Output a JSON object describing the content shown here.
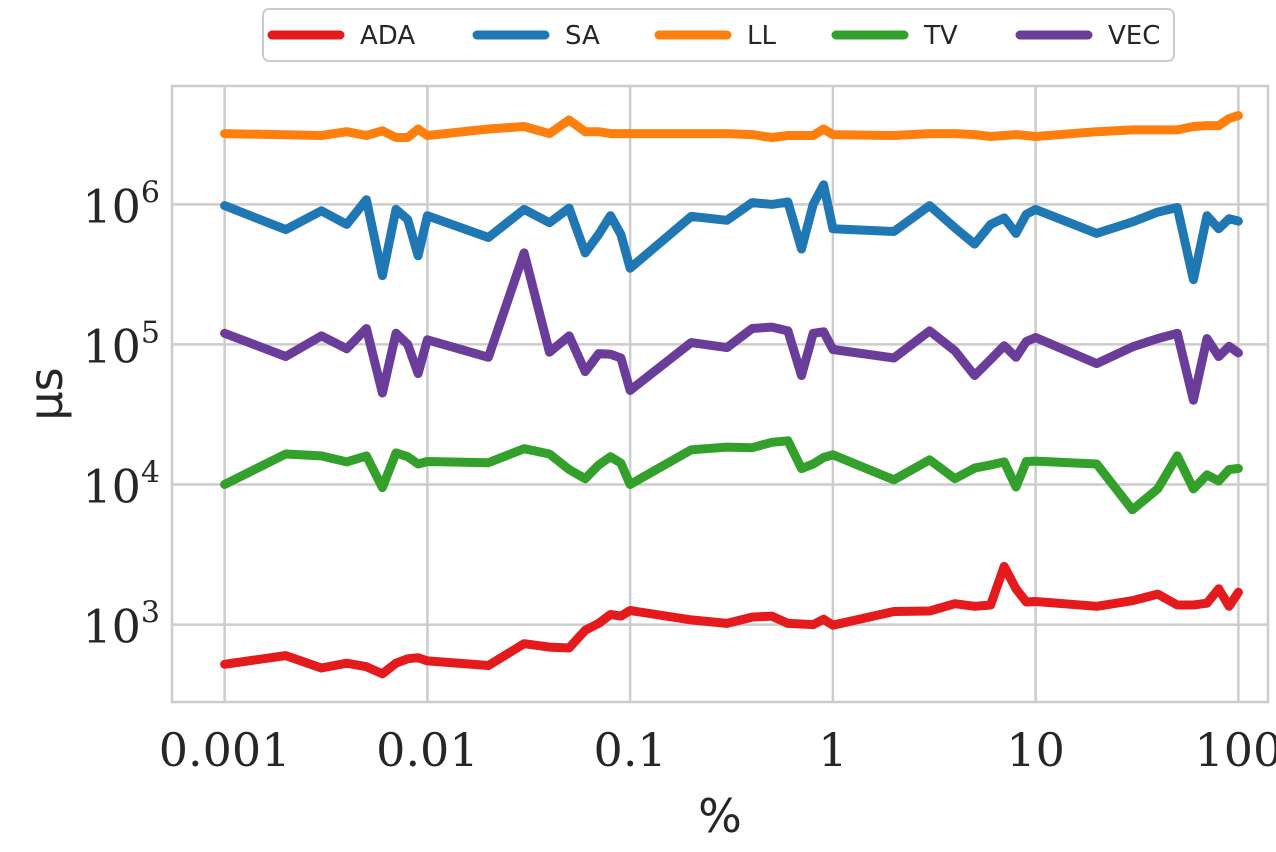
{
  "chart_data": {
    "type": "line",
    "xlabel": "%",
    "ylabel": "μs",
    "xscale": "log",
    "yscale": "log",
    "xlim": [
      0.00055,
      140
    ],
    "ylim": [
      280,
      7000000
    ],
    "xticks": [
      {
        "value": 0.001,
        "label": "0.001"
      },
      {
        "value": 0.01,
        "label": "0.01"
      },
      {
        "value": 0.1,
        "label": "0.1"
      },
      {
        "value": 1,
        "label": "1"
      },
      {
        "value": 10,
        "label": "10"
      },
      {
        "value": 100,
        "label": "100"
      }
    ],
    "yticks": [
      {
        "value": 1000,
        "base": "10",
        "exp": "3"
      },
      {
        "value": 10000,
        "base": "10",
        "exp": "4"
      },
      {
        "value": 100000,
        "base": "10",
        "exp": "5"
      },
      {
        "value": 1000000,
        "base": "10",
        "exp": "6"
      }
    ],
    "grid": true,
    "legend_position": "top-center",
    "series": [
      {
        "name": "ADA",
        "color": "#e41a1c",
        "points": [
          [
            0.001,
            520
          ],
          [
            0.002,
            600
          ],
          [
            0.003,
            490
          ],
          [
            0.004,
            530
          ],
          [
            0.005,
            500
          ],
          [
            0.006,
            445
          ],
          [
            0.007,
            530
          ],
          [
            0.008,
            570
          ],
          [
            0.009,
            580
          ],
          [
            0.01,
            550
          ],
          [
            0.02,
            510
          ],
          [
            0.03,
            730
          ],
          [
            0.04,
            690
          ],
          [
            0.05,
            680
          ],
          [
            0.06,
            910
          ],
          [
            0.07,
            1020
          ],
          [
            0.08,
            1180
          ],
          [
            0.09,
            1150
          ],
          [
            0.1,
            1260
          ],
          [
            0.2,
            1080
          ],
          [
            0.3,
            1020
          ],
          [
            0.4,
            1130
          ],
          [
            0.5,
            1150
          ],
          [
            0.6,
            1020
          ],
          [
            0.7,
            1010
          ],
          [
            0.8,
            1000
          ],
          [
            0.9,
            1090
          ],
          [
            1,
            990
          ],
          [
            2,
            1240
          ],
          [
            3,
            1250
          ],
          [
            4,
            1410
          ],
          [
            5,
            1350
          ],
          [
            6,
            1380
          ],
          [
            7,
            2600
          ],
          [
            8,
            1800
          ],
          [
            9,
            1450
          ],
          [
            10,
            1460
          ],
          [
            20,
            1350
          ],
          [
            30,
            1480
          ],
          [
            40,
            1650
          ],
          [
            50,
            1380
          ],
          [
            60,
            1380
          ],
          [
            70,
            1420
          ],
          [
            80,
            1800
          ],
          [
            90,
            1350
          ],
          [
            100,
            1700
          ]
        ]
      },
      {
        "name": "SA",
        "color": "#1f78b4",
        "points": [
          [
            0.001,
            980000
          ],
          [
            0.002,
            660000
          ],
          [
            0.003,
            900000
          ],
          [
            0.004,
            720000
          ],
          [
            0.005,
            1080000
          ],
          [
            0.006,
            310000
          ],
          [
            0.007,
            920000
          ],
          [
            0.008,
            780000
          ],
          [
            0.009,
            430000
          ],
          [
            0.01,
            830000
          ],
          [
            0.02,
            580000
          ],
          [
            0.03,
            920000
          ],
          [
            0.04,
            740000
          ],
          [
            0.05,
            940000
          ],
          [
            0.06,
            450000
          ],
          [
            0.07,
            610000
          ],
          [
            0.08,
            830000
          ],
          [
            0.09,
            610000
          ],
          [
            0.1,
            350000
          ],
          [
            0.2,
            820000
          ],
          [
            0.3,
            770000
          ],
          [
            0.4,
            1030000
          ],
          [
            0.5,
            1000000
          ],
          [
            0.6,
            1040000
          ],
          [
            0.7,
            480000
          ],
          [
            0.8,
            1000000
          ],
          [
            0.9,
            1380000
          ],
          [
            1,
            670000
          ],
          [
            2,
            640000
          ],
          [
            3,
            980000
          ],
          [
            4,
            680000
          ],
          [
            5,
            520000
          ],
          [
            6,
            720000
          ],
          [
            7,
            800000
          ],
          [
            8,
            620000
          ],
          [
            9,
            850000
          ],
          [
            10,
            920000
          ],
          [
            20,
            620000
          ],
          [
            30,
            750000
          ],
          [
            40,
            880000
          ],
          [
            50,
            950000
          ],
          [
            60,
            290000
          ],
          [
            70,
            830000
          ],
          [
            80,
            670000
          ],
          [
            90,
            790000
          ],
          [
            100,
            760000
          ]
        ]
      },
      {
        "name": "LL",
        "color": "#ff7f0e",
        "points": [
          [
            0.001,
            3200000
          ],
          [
            0.003,
            3100000
          ],
          [
            0.004,
            3300000
          ],
          [
            0.005,
            3100000
          ],
          [
            0.006,
            3350000
          ],
          [
            0.007,
            3000000
          ],
          [
            0.008,
            3000000
          ],
          [
            0.009,
            3450000
          ],
          [
            0.01,
            3100000
          ],
          [
            0.02,
            3450000
          ],
          [
            0.03,
            3600000
          ],
          [
            0.04,
            3200000
          ],
          [
            0.05,
            4000000
          ],
          [
            0.06,
            3300000
          ],
          [
            0.07,
            3300000
          ],
          [
            0.08,
            3200000
          ],
          [
            0.1,
            3200000
          ],
          [
            0.3,
            3200000
          ],
          [
            0.4,
            3150000
          ],
          [
            0.5,
            3000000
          ],
          [
            0.6,
            3100000
          ],
          [
            0.7,
            3100000
          ],
          [
            0.8,
            3100000
          ],
          [
            0.9,
            3450000
          ],
          [
            1,
            3150000
          ],
          [
            2,
            3100000
          ],
          [
            3,
            3200000
          ],
          [
            4,
            3200000
          ],
          [
            5,
            3150000
          ],
          [
            6,
            3050000
          ],
          [
            7,
            3100000
          ],
          [
            8,
            3150000
          ],
          [
            9,
            3100000
          ],
          [
            10,
            3050000
          ],
          [
            20,
            3300000
          ],
          [
            30,
            3400000
          ],
          [
            50,
            3400000
          ],
          [
            60,
            3600000
          ],
          [
            70,
            3650000
          ],
          [
            80,
            3650000
          ],
          [
            90,
            4100000
          ],
          [
            100,
            4300000
          ]
        ]
      },
      {
        "name": "TV",
        "color": "#33a02c",
        "points": [
          [
            0.001,
            10000
          ],
          [
            0.002,
            16500
          ],
          [
            0.003,
            16000
          ],
          [
            0.004,
            14500
          ],
          [
            0.005,
            16000
          ],
          [
            0.006,
            9500
          ],
          [
            0.007,
            16800
          ],
          [
            0.008,
            15800
          ],
          [
            0.009,
            14000
          ],
          [
            0.01,
            14600
          ],
          [
            0.02,
            14300
          ],
          [
            0.03,
            18000
          ],
          [
            0.04,
            16500
          ],
          [
            0.05,
            12800
          ],
          [
            0.06,
            11000
          ],
          [
            0.07,
            13800
          ],
          [
            0.08,
            15800
          ],
          [
            0.09,
            14200
          ],
          [
            0.1,
            10000
          ],
          [
            0.2,
            17700
          ],
          [
            0.3,
            18500
          ],
          [
            0.4,
            18300
          ],
          [
            0.5,
            20000
          ],
          [
            0.6,
            20500
          ],
          [
            0.7,
            13000
          ],
          [
            0.8,
            14000
          ],
          [
            0.9,
            15600
          ],
          [
            1,
            16300
          ],
          [
            2,
            10800
          ],
          [
            3,
            15000
          ],
          [
            4,
            11000
          ],
          [
            5,
            13100
          ],
          [
            6,
            13800
          ],
          [
            7,
            14500
          ],
          [
            8,
            9600
          ],
          [
            9,
            14600
          ],
          [
            10,
            14700
          ],
          [
            20,
            14000
          ],
          [
            30,
            6600
          ],
          [
            40,
            9300
          ],
          [
            50,
            16000
          ],
          [
            60,
            9300
          ],
          [
            70,
            11700
          ],
          [
            80,
            10600
          ],
          [
            90,
            12800
          ],
          [
            100,
            13000
          ]
        ]
      },
      {
        "name": "VEC",
        "color": "#6a3d9a",
        "points": [
          [
            0.001,
            120000
          ],
          [
            0.002,
            82000
          ],
          [
            0.003,
            115000
          ],
          [
            0.004,
            93000
          ],
          [
            0.005,
            130000
          ],
          [
            0.006,
            45000
          ],
          [
            0.007,
            120000
          ],
          [
            0.008,
            100000
          ],
          [
            0.009,
            62000
          ],
          [
            0.01,
            108000
          ],
          [
            0.02,
            81000
          ],
          [
            0.03,
            450000
          ],
          [
            0.04,
            88000
          ],
          [
            0.05,
            115000
          ],
          [
            0.06,
            64000
          ],
          [
            0.07,
            86000
          ],
          [
            0.08,
            85000
          ],
          [
            0.09,
            80000
          ],
          [
            0.1,
            47000
          ],
          [
            0.2,
            103000
          ],
          [
            0.3,
            95000
          ],
          [
            0.4,
            130000
          ],
          [
            0.5,
            133000
          ],
          [
            0.6,
            125000
          ],
          [
            0.7,
            60000
          ],
          [
            0.8,
            120000
          ],
          [
            0.9,
            123000
          ],
          [
            1,
            92000
          ],
          [
            2,
            80000
          ],
          [
            3,
            125000
          ],
          [
            4,
            90000
          ],
          [
            5,
            60000
          ],
          [
            6,
            78000
          ],
          [
            7,
            98000
          ],
          [
            8,
            81000
          ],
          [
            9,
            105000
          ],
          [
            10,
            112000
          ],
          [
            20,
            73000
          ],
          [
            30,
            96000
          ],
          [
            40,
            110000
          ],
          [
            50,
            120000
          ],
          [
            60,
            40000
          ],
          [
            70,
            110000
          ],
          [
            80,
            82000
          ],
          [
            90,
            97000
          ],
          [
            100,
            87000
          ]
        ]
      }
    ]
  }
}
